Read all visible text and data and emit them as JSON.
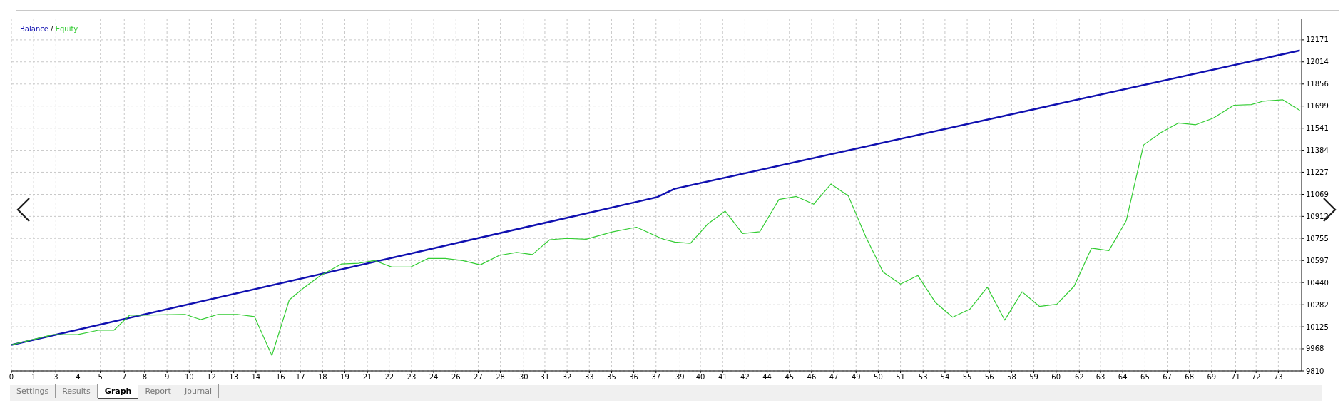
{
  "chart_data": {
    "type": "line",
    "series": [
      {
        "name": "Balance",
        "color": "#1010b0",
        "x": [
          0,
          36.3,
          37.2,
          38.2,
          59.2,
          74.2
        ],
        "values": [
          9996,
          11024,
          11050,
          11109,
          11685,
          12095
        ]
      },
      {
        "name": "Equity",
        "color": "#33cc33",
        "x": [
          0,
          2.4,
          3.8,
          5,
          5.9,
          6.8,
          7.5,
          10,
          10.9,
          11.9,
          13,
          14,
          15,
          16,
          16.8,
          17.8,
          19,
          20,
          20.9,
          21.9,
          23,
          24,
          25,
          26,
          27,
          28.1,
          29.1,
          30,
          31,
          32,
          33.1,
          34.6,
          36,
          37.5,
          38.2,
          39.1,
          40.1,
          41.1,
          42.1,
          43.1,
          44.2,
          45.2,
          46.2,
          47.2,
          48.2,
          49.2,
          50.2,
          51.2,
          52.2,
          53.2,
          54.2,
          55.2,
          56.2,
          57.2,
          58.2,
          59.2,
          60.2,
          61.2,
          62.2,
          63.2,
          64.2,
          65.2,
          66.2,
          67.2,
          68.2,
          69.2,
          70.4,
          71.4,
          72.1,
          73.2,
          74.2
        ],
        "values": [
          9996,
          10069,
          10069,
          10100,
          10100,
          10207,
          10207,
          10213,
          10176,
          10213,
          10213,
          10197,
          9920,
          10316,
          10399,
          10490,
          10572,
          10578,
          10597,
          10551,
          10551,
          10612,
          10612,
          10597,
          10566,
          10634,
          10655,
          10640,
          10746,
          10755,
          10749,
          10801,
          10835,
          10751,
          10729,
          10720,
          10858,
          10950,
          10790,
          10803,
          11033,
          11054,
          10999,
          11143,
          11057,
          10766,
          10515,
          10429,
          10490,
          10300,
          10193,
          10251,
          10407,
          10172,
          10374,
          10270,
          10285,
          10414,
          10686,
          10668,
          10882,
          11422,
          11510,
          11578,
          11566,
          11612,
          11705,
          11709,
          11734,
          11744,
          11668
        ]
      }
    ],
    "xlim": [
      0,
      74.3
    ],
    "xticks": [
      {
        "value": 0,
        "label": "0"
      },
      {
        "value": 1.28,
        "label": "1"
      },
      {
        "value": 2.56,
        "label": "3"
      },
      {
        "value": 3.84,
        "label": "4"
      },
      {
        "value": 5.12,
        "label": "5"
      },
      {
        "value": 6.5,
        "label": "7"
      },
      {
        "value": 7.68,
        "label": "8"
      },
      {
        "value": 8.96,
        "label": "9"
      },
      {
        "value": 10.24,
        "label": "10"
      },
      {
        "value": 11.52,
        "label": "12"
      },
      {
        "value": 12.8,
        "label": "13"
      },
      {
        "value": 14.08,
        "label": "14"
      },
      {
        "value": 15.5,
        "label": "16"
      },
      {
        "value": 16.64,
        "label": "17"
      },
      {
        "value": 17.92,
        "label": "18"
      },
      {
        "value": 19.2,
        "label": "19"
      },
      {
        "value": 20.5,
        "label": "21"
      },
      {
        "value": 21.76,
        "label": "22"
      },
      {
        "value": 23.04,
        "label": "23"
      },
      {
        "value": 24.32,
        "label": "24"
      },
      {
        "value": 25.6,
        "label": "26"
      },
      {
        "value": 26.88,
        "label": "27"
      },
      {
        "value": 28.16,
        "label": "28"
      },
      {
        "value": 29.5,
        "label": "30"
      },
      {
        "value": 30.72,
        "label": "31"
      },
      {
        "value": 32,
        "label": "32"
      },
      {
        "value": 33.28,
        "label": "33"
      },
      {
        "value": 34.56,
        "label": "35"
      },
      {
        "value": 35.84,
        "label": "36"
      },
      {
        "value": 37.12,
        "label": "37"
      },
      {
        "value": 38.5,
        "label": "39"
      },
      {
        "value": 39.68,
        "label": "40"
      },
      {
        "value": 40.96,
        "label": "41"
      },
      {
        "value": 42.24,
        "label": "42"
      },
      {
        "value": 43.52,
        "label": "44"
      },
      {
        "value": 44.8,
        "label": "45"
      },
      {
        "value": 46.08,
        "label": "46"
      },
      {
        "value": 47.36,
        "label": "47"
      },
      {
        "value": 48.64,
        "label": "49"
      },
      {
        "value": 49.92,
        "label": "50"
      },
      {
        "value": 51.2,
        "label": "51"
      },
      {
        "value": 52.5,
        "label": "53"
      },
      {
        "value": 53.76,
        "label": "54"
      },
      {
        "value": 55.04,
        "label": "55"
      },
      {
        "value": 56.32,
        "label": "56"
      },
      {
        "value": 57.6,
        "label": "58"
      },
      {
        "value": 58.88,
        "label": "59"
      },
      {
        "value": 60.16,
        "label": "60"
      },
      {
        "value": 61.5,
        "label": "62"
      },
      {
        "value": 62.72,
        "label": "63"
      },
      {
        "value": 64,
        "label": "64"
      },
      {
        "value": 65.28,
        "label": "65"
      },
      {
        "value": 66.56,
        "label": "67"
      },
      {
        "value": 67.84,
        "label": "68"
      },
      {
        "value": 69.12,
        "label": "69"
      },
      {
        "value": 70.5,
        "label": "71"
      },
      {
        "value": 71.68,
        "label": "72"
      },
      {
        "value": 72.96,
        "label": "73"
      }
    ],
    "ylim": [
      9810,
      12323
    ],
    "yticks": [
      9810,
      9968,
      10125,
      10282,
      10440,
      10597,
      10755,
      10912,
      11069,
      11227,
      11384,
      11541,
      11699,
      11856,
      12014,
      12171
    ],
    "grid": true,
    "legend": "top left",
    "marker": "none",
    "line_style": "solid",
    "annotations": [
      "/",
      "Settings",
      "Results",
      "Graph",
      "Report",
      "Journal"
    ]
  }
}
